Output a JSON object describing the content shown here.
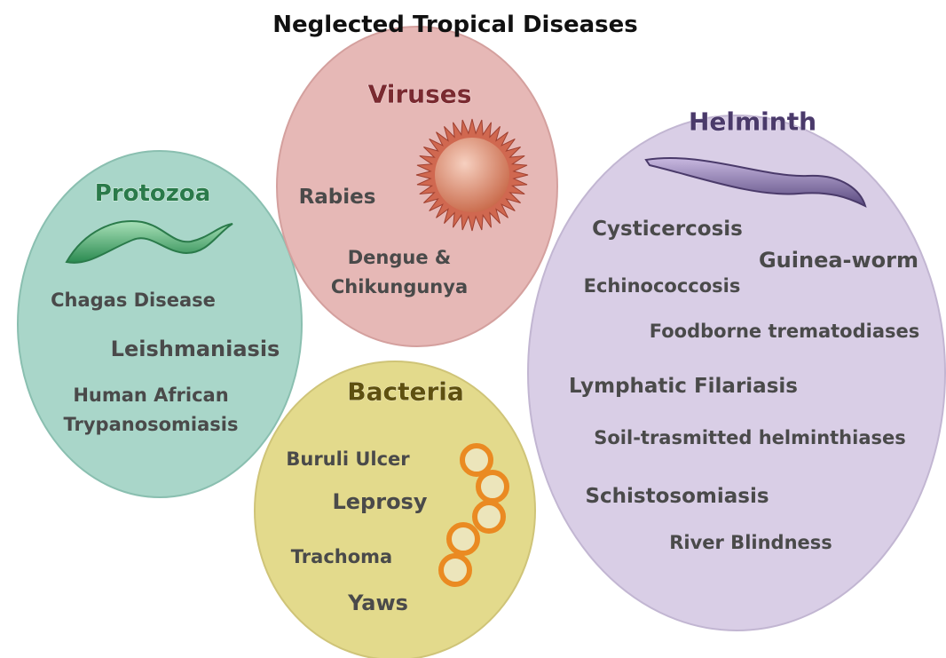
{
  "title": "Neglected Tropical Diseases",
  "groups": [
    {
      "label": "Protozoa",
      "items": [
        [
          "Chagas Disease"
        ],
        [
          "Leishmaniasis"
        ],
        [
          "Human African",
          "Trypanosomiasis"
        ]
      ]
    },
    {
      "label": "Viruses",
      "items": [
        [
          "Rabies"
        ],
        [
          "Dengue &",
          "Chikungunya"
        ]
      ]
    },
    {
      "label": "Bacteria",
      "items": [
        [
          "Buruli Ulcer"
        ],
        [
          "Leprosy"
        ],
        [
          "Trachoma"
        ],
        [
          "Yaws"
        ]
      ]
    },
    {
      "label": "Helminth",
      "items": [
        [
          "Cysticercosis"
        ],
        [
          "Guinea-worm"
        ],
        [
          "Echinococcosis"
        ],
        [
          "Foodborne trematodiases"
        ],
        [
          "Lymphatic Filariasis"
        ],
        [
          "Soil-trasmitted helminthiases"
        ],
        [
          "Schistosomiasis"
        ],
        [
          "River Blindness"
        ]
      ]
    }
  ]
}
